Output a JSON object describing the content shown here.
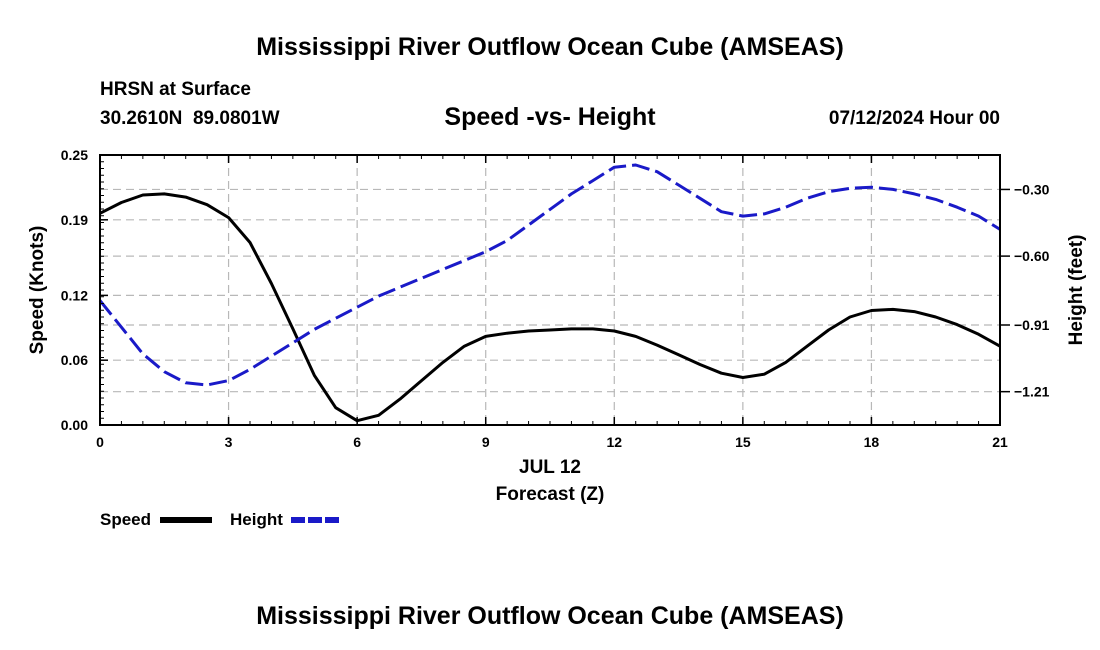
{
  "chart_data": {
    "type": "line",
    "title": "Mississippi River Outflow Ocean Cube (AMSEAS)",
    "footer_title": "Mississippi River Outflow Ocean Cube (AMSEAS)",
    "station": "HRSN at Surface",
    "coordinates": "30.2610N  89.0801W",
    "subtitle": "Speed -vs- Height",
    "datetime": "07/12/2024 Hour 00",
    "xlabel": "Forecast (Z)",
    "xdate": "JUL 12",
    "ylabel": "Speed (Knots)",
    "y2label": "Height (feet)",
    "xlim": [
      0,
      21
    ],
    "ylim": [
      0,
      0.25
    ],
    "y2lim": [
      -1.36,
      -0.145
    ],
    "xticks": [
      0,
      3,
      6,
      9,
      12,
      15,
      18,
      21
    ],
    "yticks": [
      0.0,
      0.06,
      0.12,
      0.19,
      0.25
    ],
    "ytick_labels": [
      "0.00",
      "0.06",
      "0.12",
      "0.19",
      "0.25"
    ],
    "y2ticks": [
      -1.21,
      -0.91,
      -0.6,
      -0.3
    ],
    "y2tick_labels": [
      "−1.21",
      "−0.91",
      "−0.60",
      "−0.30"
    ],
    "grid": true,
    "legend": [
      {
        "name": "Speed",
        "color": "#000000",
        "dashed": false
      },
      {
        "name": "Height",
        "color": "#1a1ac8",
        "dashed": true
      }
    ],
    "series": [
      {
        "name": "Speed",
        "axis": "left",
        "color": "#000000",
        "x": [
          0,
          0.5,
          1,
          1.5,
          2,
          2.5,
          3,
          3.5,
          4,
          4.5,
          5,
          5.5,
          6,
          6.5,
          7,
          7.5,
          8,
          8.5,
          9,
          9.5,
          10,
          10.5,
          11,
          11.5,
          12,
          12.5,
          13,
          13.5,
          14,
          14.5,
          15,
          15.5,
          16,
          16.5,
          17,
          17.5,
          18,
          18.5,
          19,
          19.5,
          20,
          20.5,
          21
        ],
        "values": [
          0.196,
          0.206,
          0.213,
          0.214,
          0.211,
          0.204,
          0.192,
          0.169,
          0.131,
          0.089,
          0.046,
          0.016,
          0.004,
          0.009,
          0.024,
          0.041,
          0.058,
          0.073,
          0.082,
          0.085,
          0.087,
          0.088,
          0.089,
          0.089,
          0.087,
          0.082,
          0.074,
          0.065,
          0.056,
          0.048,
          0.044,
          0.047,
          0.058,
          0.073,
          0.088,
          0.1,
          0.106,
          0.107,
          0.105,
          0.1,
          0.093,
          0.084,
          0.073
        ]
      },
      {
        "name": "Height",
        "axis": "right",
        "color": "#1a1ac8",
        "x": [
          0,
          0.5,
          1,
          1.5,
          2,
          2.5,
          3,
          3.5,
          4,
          4.5,
          5,
          5.5,
          6,
          6.5,
          7,
          7.5,
          8,
          8.5,
          9,
          9.5,
          10,
          10.5,
          11,
          11.5,
          12,
          12.5,
          13,
          13.5,
          14,
          14.5,
          15,
          15.5,
          16,
          16.5,
          17,
          17.5,
          18,
          18.5,
          19,
          19.5,
          20,
          20.5,
          21
        ],
        "values": [
          -0.8,
          -0.92,
          -1.04,
          -1.12,
          -1.17,
          -1.18,
          -1.16,
          -1.11,
          -1.05,
          -0.99,
          -0.93,
          -0.88,
          -0.83,
          -0.78,
          -0.74,
          -0.7,
          -0.66,
          -0.62,
          -0.58,
          -0.53,
          -0.46,
          -0.39,
          -0.32,
          -0.26,
          -0.2,
          -0.19,
          -0.22,
          -0.28,
          -0.34,
          -0.4,
          -0.42,
          -0.41,
          -0.38,
          -0.34,
          -0.31,
          -0.295,
          -0.29,
          -0.3,
          -0.32,
          -0.345,
          -0.38,
          -0.42,
          -0.48
        ]
      }
    ]
  }
}
